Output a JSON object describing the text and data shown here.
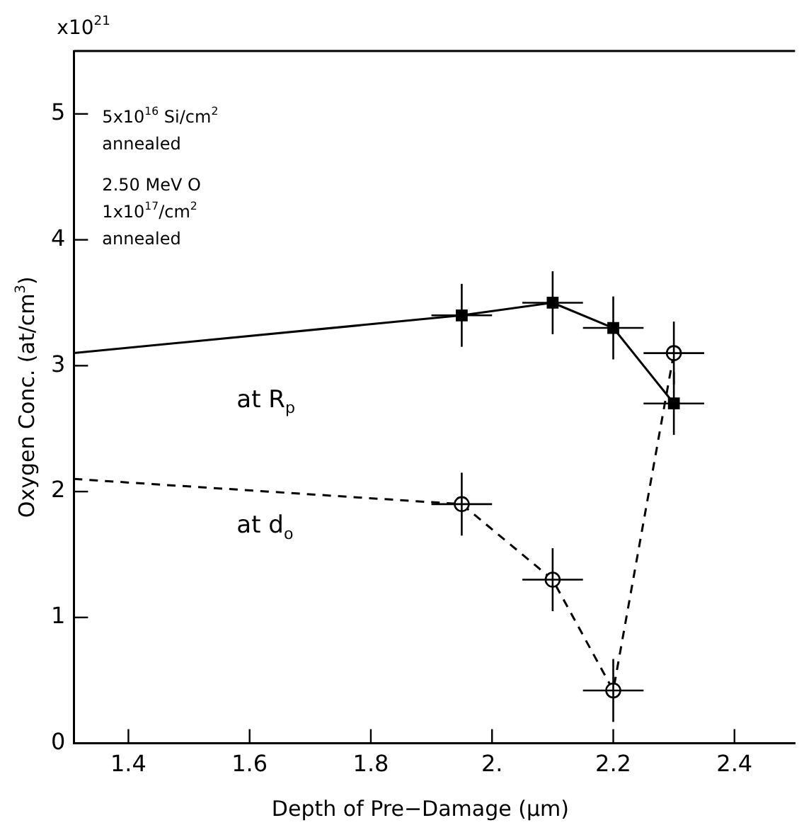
{
  "chart_data": {
    "type": "line",
    "xlabel": "Depth of Pre−Damage (μm)",
    "ylabel": "Oxygen Conc. (at/cm$^{3}$)",
    "annotations": [
      "x10$^{21}$",
      "5x10$^{16}$ Si/cm$^{2}$",
      "annealed",
      "2.50 MeV O",
      "1x10$^{17}$/cm$^{2}$",
      "annealed"
    ],
    "series": [
      {
        "name": "at R$_{p}$",
        "color": "#000000",
        "line_style": "solid",
        "marker": "square",
        "x": [
          1.31,
          1.95,
          2.1,
          2.2,
          2.3
        ],
        "values": [
          3.1,
          3.4,
          3.5,
          3.3,
          2.7
        ],
        "errors": [
          null,
          0.25,
          0.25,
          0.25,
          0.25
        ],
        "xerrors": [
          null,
          0.05,
          0.05,
          0.05,
          0.05
        ]
      },
      {
        "name": "at d$_{o}$",
        "color": "#000000",
        "line_style": "dashed",
        "marker": "circle",
        "x": [
          1.31,
          1.95,
          2.1,
          2.2,
          2.3
        ],
        "values": [
          2.1,
          1.9,
          1.3,
          0.42,
          3.1
        ],
        "errors": [
          null,
          0.25,
          0.25,
          0.25,
          0.25
        ],
        "xerrors": [
          null,
          0.05,
          0.05,
          0.05,
          0.05
        ]
      }
    ],
    "xlim": [
      1.31,
      2.5
    ],
    "xticks": [
      1.4,
      1.6,
      1.8,
      {
        "value": 2,
        "label": "2."
      },
      2.2,
      2.4
    ],
    "ylim": [
      0,
      5.5
    ],
    "yticks": [
      0,
      1,
      2,
      3,
      4,
      5
    ],
    "grid": false,
    "legend": false
  }
}
